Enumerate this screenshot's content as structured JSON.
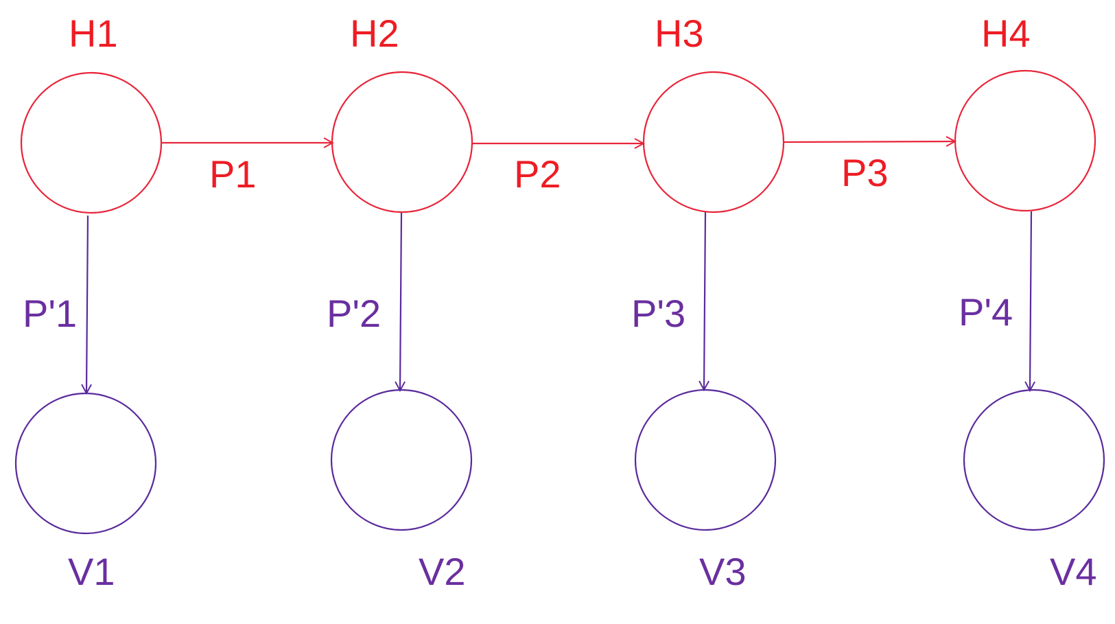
{
  "colors": {
    "hidden": "#ee1c24",
    "visible": "#6a2fa0"
  },
  "hidden_states": [
    {
      "label": "H1"
    },
    {
      "label": "H2"
    },
    {
      "label": "H3"
    },
    {
      "label": "H4"
    }
  ],
  "visible_states": [
    {
      "label": "V1"
    },
    {
      "label": "V2"
    },
    {
      "label": "V3"
    },
    {
      "label": "V4"
    }
  ],
  "transition_edges": [
    {
      "label": "P1"
    },
    {
      "label": "P2"
    },
    {
      "label": "P3"
    }
  ],
  "emission_edges": [
    {
      "label": "P'1"
    },
    {
      "label": "P'2"
    },
    {
      "label": "P'3"
    },
    {
      "label": "P'4"
    }
  ]
}
